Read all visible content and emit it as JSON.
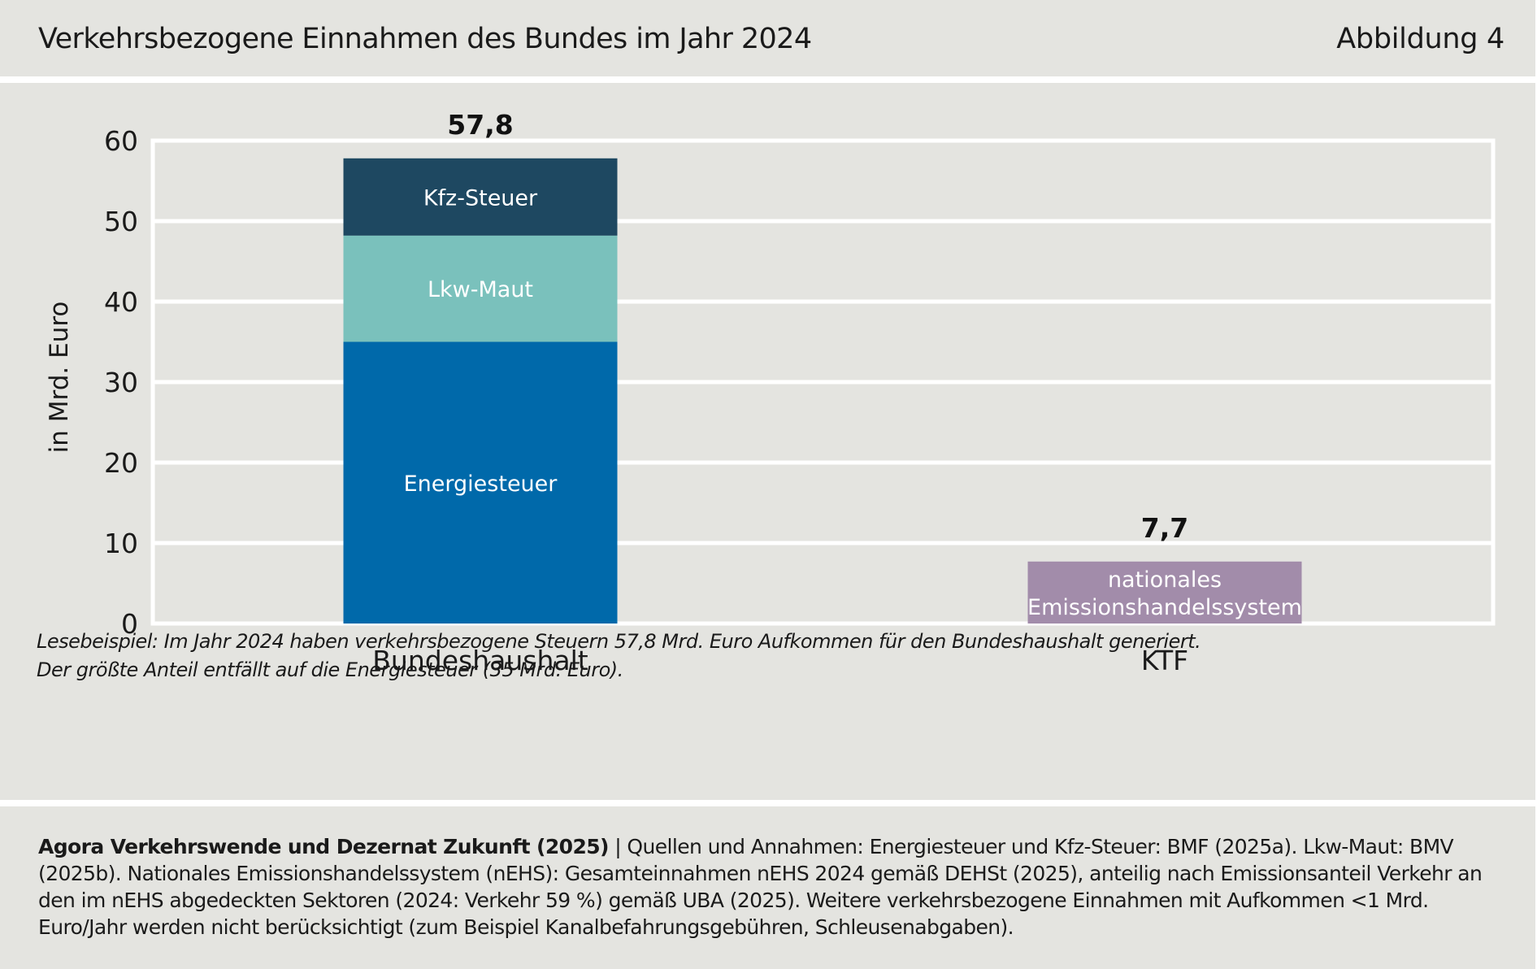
{
  "header": {
    "title": "Verkehrsbezogene Einnahmen des Bundes im Jahr 2024",
    "figure_number": "Abbildung 4"
  },
  "chart_data": {
    "type": "bar",
    "stacked": true,
    "title": "Verkehrsbezogene Einnahmen des Bundes im Jahr 2024",
    "xlabel": "",
    "ylabel": "in Mrd. Euro",
    "ylim": [
      0,
      60
    ],
    "yticks": [
      0,
      10,
      20,
      30,
      40,
      50,
      60
    ],
    "grid": true,
    "categories": [
      "Bundeshaushalt",
      "KTF"
    ],
    "totals": [
      "57,8",
      "7,7"
    ],
    "series": [
      {
        "name": "Energiesteuer",
        "color": "#0069aa",
        "values": [
          35.0,
          0
        ]
      },
      {
        "name": "Lkw-Maut",
        "color": "#7ac1bc",
        "values": [
          13.2,
          0
        ]
      },
      {
        "name": "Kfz-Steuer",
        "color": "#1e4861",
        "values": [
          9.6,
          0
        ]
      },
      {
        "name": "nationales Emissionshandelssystem",
        "label_lines": [
          "nationales",
          "Emissionshandelssystem"
        ],
        "color": "#a28caa",
        "values": [
          0,
          7.7
        ]
      }
    ]
  },
  "note": {
    "line1": "Lesebeispiel: Im Jahr 2024 haben verkehrsbezogene Steuern 57,8 Mrd. Euro Aufkommen für den Bundeshaushalt generiert.",
    "line2": "Der größte Anteil entfällt auf die Energiesteuer (35 Mrd. Euro)."
  },
  "source": {
    "author": "Agora Verkehrswende und Dezernat Zukunft (2025)",
    "separator": " | ",
    "text": "Quellen und Annahmen: Energiesteuer und Kfz-Steuer: BMF (2025a). Lkw-Maut: BMV (2025b). Nationales Emissionshandelssystem (nEHS): Gesamteinnahmen nEHS 2024 gemäß DEHSt (2025), anteilig nach Emissionsanteil Verkehr an den im nEHS abgedeckten Sektoren (2024: Verkehr 59 %) gemäß UBA (2025). Weitere verkehrsbezogene Einnahmen mit Aufkommen <1 Mrd. Euro/Jahr werden nicht berücksichtigt (zum Beispiel Kanalbefahrungsgebühren, Schleusenabgaben)."
  }
}
